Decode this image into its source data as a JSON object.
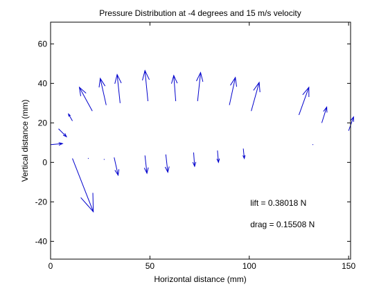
{
  "chart_data": {
    "type": "quiver",
    "title": "Pressure Distribution at -4 degrees and 15 m/s velocity",
    "xlabel": "Horizontal distance (mm)",
    "ylabel": "Vertical distance (mm)",
    "xlim": [
      0,
      151
    ],
    "ylim": [
      -49,
      71
    ],
    "xticks": [
      0,
      50,
      100,
      150
    ],
    "yticks": [
      -40,
      -20,
      0,
      20,
      40,
      60
    ],
    "grid": false,
    "legend": "none",
    "arrow_color": "#0000cc",
    "annotations": [
      {
        "text": "lift = 0.38018 N",
        "x": 100.5,
        "y": -20.5
      },
      {
        "text": "drag = 0.15508 N",
        "x": 100.5,
        "y": -31.5
      }
    ],
    "vectors": [
      {
        "x": 0,
        "y": 9,
        "u": 6,
        "v": 0.5
      },
      {
        "x": 4,
        "y": 17,
        "u": 4,
        "v": -4
      },
      {
        "x": 11,
        "y": 21,
        "u": -2,
        "v": 3.5
      },
      {
        "x": 21,
        "y": 26,
        "u": -6.5,
        "v": 12
      },
      {
        "x": 28,
        "y": 29,
        "u": -3,
        "v": 13.5
      },
      {
        "x": 35,
        "y": 30,
        "u": -1.5,
        "v": 14.5
      },
      {
        "x": 49,
        "y": 31,
        "u": -1.5,
        "v": 15.5
      },
      {
        "x": 63,
        "y": 31,
        "u": -1,
        "v": 13
      },
      {
        "x": 74,
        "y": 31,
        "u": 1.5,
        "v": 14.5
      },
      {
        "x": 90,
        "y": 29,
        "u": 3,
        "v": 14
      },
      {
        "x": 101,
        "y": 26,
        "u": 4,
        "v": 14.5
      },
      {
        "x": 125,
        "y": 24,
        "u": 5,
        "v": 14
      },
      {
        "x": 136.5,
        "y": 20,
        "u": 2.5,
        "v": 8
      },
      {
        "x": 150,
        "y": 16,
        "u": 2.5,
        "v": 7
      },
      {
        "x": 11,
        "y": 2,
        "u": 10.5,
        "v": -27
      },
      {
        "x": 19,
        "y": 2,
        "u": 0,
        "v": 0
      },
      {
        "x": 27,
        "y": 1.5,
        "u": 0,
        "v": 0
      },
      {
        "x": 32,
        "y": 2.5,
        "u": 2,
        "v": -9
      },
      {
        "x": 47.5,
        "y": 3.5,
        "u": 1,
        "v": -9
      },
      {
        "x": 58,
        "y": 4,
        "u": 1,
        "v": -9
      },
      {
        "x": 72,
        "y": 5,
        "u": 0.5,
        "v": -7
      },
      {
        "x": 84,
        "y": 6,
        "u": 0.5,
        "v": -6
      },
      {
        "x": 97,
        "y": 7,
        "u": 0.5,
        "v": -5
      },
      {
        "x": 132,
        "y": 9,
        "u": 0,
        "v": 0
      }
    ]
  }
}
